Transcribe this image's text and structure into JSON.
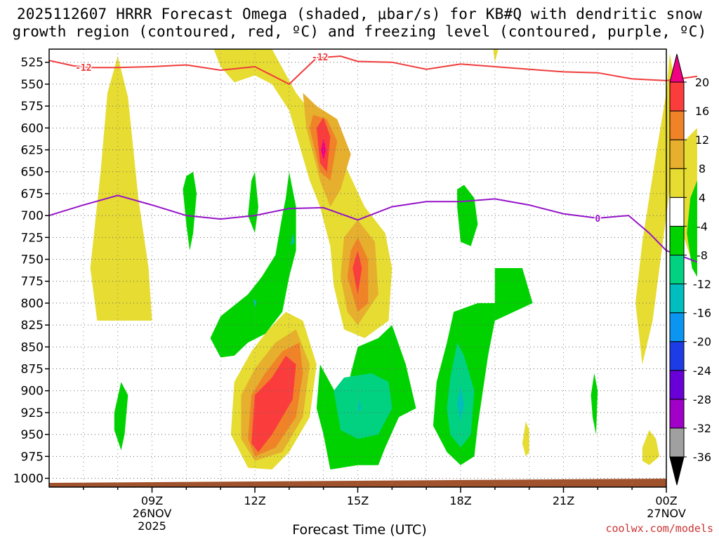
{
  "chart_data": {
    "type": "heatmap",
    "title_line1": "2025112607 HRRR Forecast Omega (shaded, μbar/s) for KB#Q with dendritic snow",
    "title_line2": "growth region (contoured, red, ºC) and freezing level (contoured, purple, ºC)",
    "xlabel": "Forecast Time (UTC)",
    "ylabel": "",
    "credit": "coolwx.com/models",
    "x_range_hours": [
      6.0,
      24.0
    ],
    "y_range_mb": [
      1010,
      510
    ],
    "y_ticks": [
      525,
      550,
      575,
      600,
      625,
      650,
      675,
      700,
      725,
      750,
      775,
      800,
      825,
      850,
      875,
      900,
      925,
      950,
      975,
      1000
    ],
    "x_ticks": [
      {
        "hour": 9,
        "label": "09Z",
        "sub1": "26NOV",
        "sub2": "2025"
      },
      {
        "hour": 12,
        "label": "12Z",
        "sub1": "",
        "sub2": ""
      },
      {
        "hour": 15,
        "label": "15Z",
        "sub1": "",
        "sub2": ""
      },
      {
        "hour": 18,
        "label": "18Z",
        "sub1": "",
        "sub2": ""
      },
      {
        "hour": 21,
        "label": "21Z",
        "sub1": "",
        "sub2": ""
      },
      {
        "hour": 24,
        "label": "00Z",
        "sub1": "27NOV",
        "sub2": ""
      }
    ],
    "colorbar": {
      "levels": [
        -36,
        -32,
        -28,
        -24,
        -20,
        -16,
        -12,
        -8,
        -4,
        4,
        8,
        12,
        16,
        20
      ],
      "tick_labels": [
        "20",
        "16",
        "12",
        "8",
        "4",
        "-4",
        "-8",
        "-12",
        "-16",
        "-20",
        "-24",
        "-28",
        "-32",
        "-36"
      ],
      "colors_bottom_to_top": [
        "#000000",
        "#a0a0a0",
        "#a000c8",
        "#6a00d8",
        "#1e3ce6",
        "#0a96f0",
        "#00bebe",
        "#00d282",
        "#00d200",
        "#ffffff",
        "#e6dc32",
        "#e6af2d",
        "#f08228",
        "#fa3c3c",
        "#f00082"
      ]
    },
    "series": [
      {
        "name": "dendritic snow growth region (-12 ºC)",
        "color": "#f03c3c",
        "contour_label": "-12",
        "points": [
          [
            6.0,
            523
          ],
          [
            6.7,
            529
          ],
          [
            7.2,
            531
          ],
          [
            8.0,
            531
          ],
          [
            9.0,
            530
          ],
          [
            10.0,
            528
          ],
          [
            11.0,
            534
          ],
          [
            12.0,
            530
          ],
          [
            13.0,
            550
          ],
          [
            13.8,
            520
          ],
          [
            14.5,
            518
          ],
          [
            15.0,
            524
          ],
          [
            16.0,
            525
          ],
          [
            17.0,
            533
          ],
          [
            18.0,
            527
          ],
          [
            19.0,
            530
          ],
          [
            20.0,
            533
          ],
          [
            21.0,
            536
          ],
          [
            22.0,
            537
          ],
          [
            23.0,
            544
          ],
          [
            24.0,
            546
          ],
          [
            24.9,
            541
          ]
        ]
      },
      {
        "name": "freezing level (0 ºC)",
        "color": "#9614c8",
        "contour_label": "0",
        "points": [
          [
            6.0,
            700
          ],
          [
            7.0,
            688
          ],
          [
            8.0,
            677
          ],
          [
            9.0,
            688
          ],
          [
            10.0,
            700
          ],
          [
            11.0,
            704
          ],
          [
            12.0,
            700
          ],
          [
            13.0,
            692
          ],
          [
            14.0,
            691
          ],
          [
            15.0,
            705
          ],
          [
            16.0,
            690
          ],
          [
            17.0,
            684
          ],
          [
            18.0,
            684
          ],
          [
            19.0,
            681
          ],
          [
            20.0,
            688
          ],
          [
            21.0,
            698
          ],
          [
            22.0,
            703
          ],
          [
            22.9,
            700
          ],
          [
            23.5,
            720
          ],
          [
            24.0,
            740
          ],
          [
            24.9,
            753
          ]
        ]
      }
    ],
    "omega_regions": [
      {
        "level": 8,
        "center_hour": 8.0,
        "center_mb": 655,
        "note": "tall weak rising column"
      },
      {
        "level": 16,
        "center_hour": 14.0,
        "center_mb": 622,
        "note": "upper max (>20 core)"
      },
      {
        "level": 16,
        "center_hour": 15.0,
        "center_mb": 760,
        "note": "mid max"
      },
      {
        "level": 16,
        "center_hour": 12.8,
        "center_mb": 910,
        "note": "low max"
      },
      {
        "level": -12,
        "center_hour": 15.5,
        "center_mb": 910,
        "note": "low sinking"
      },
      {
        "level": -12,
        "center_hour": 17.9,
        "center_mb": 905,
        "note": "low sinking"
      },
      {
        "level": 8,
        "center_hour": 23.0,
        "center_mb": 680,
        "note": "tall weak rising column"
      }
    ]
  }
}
